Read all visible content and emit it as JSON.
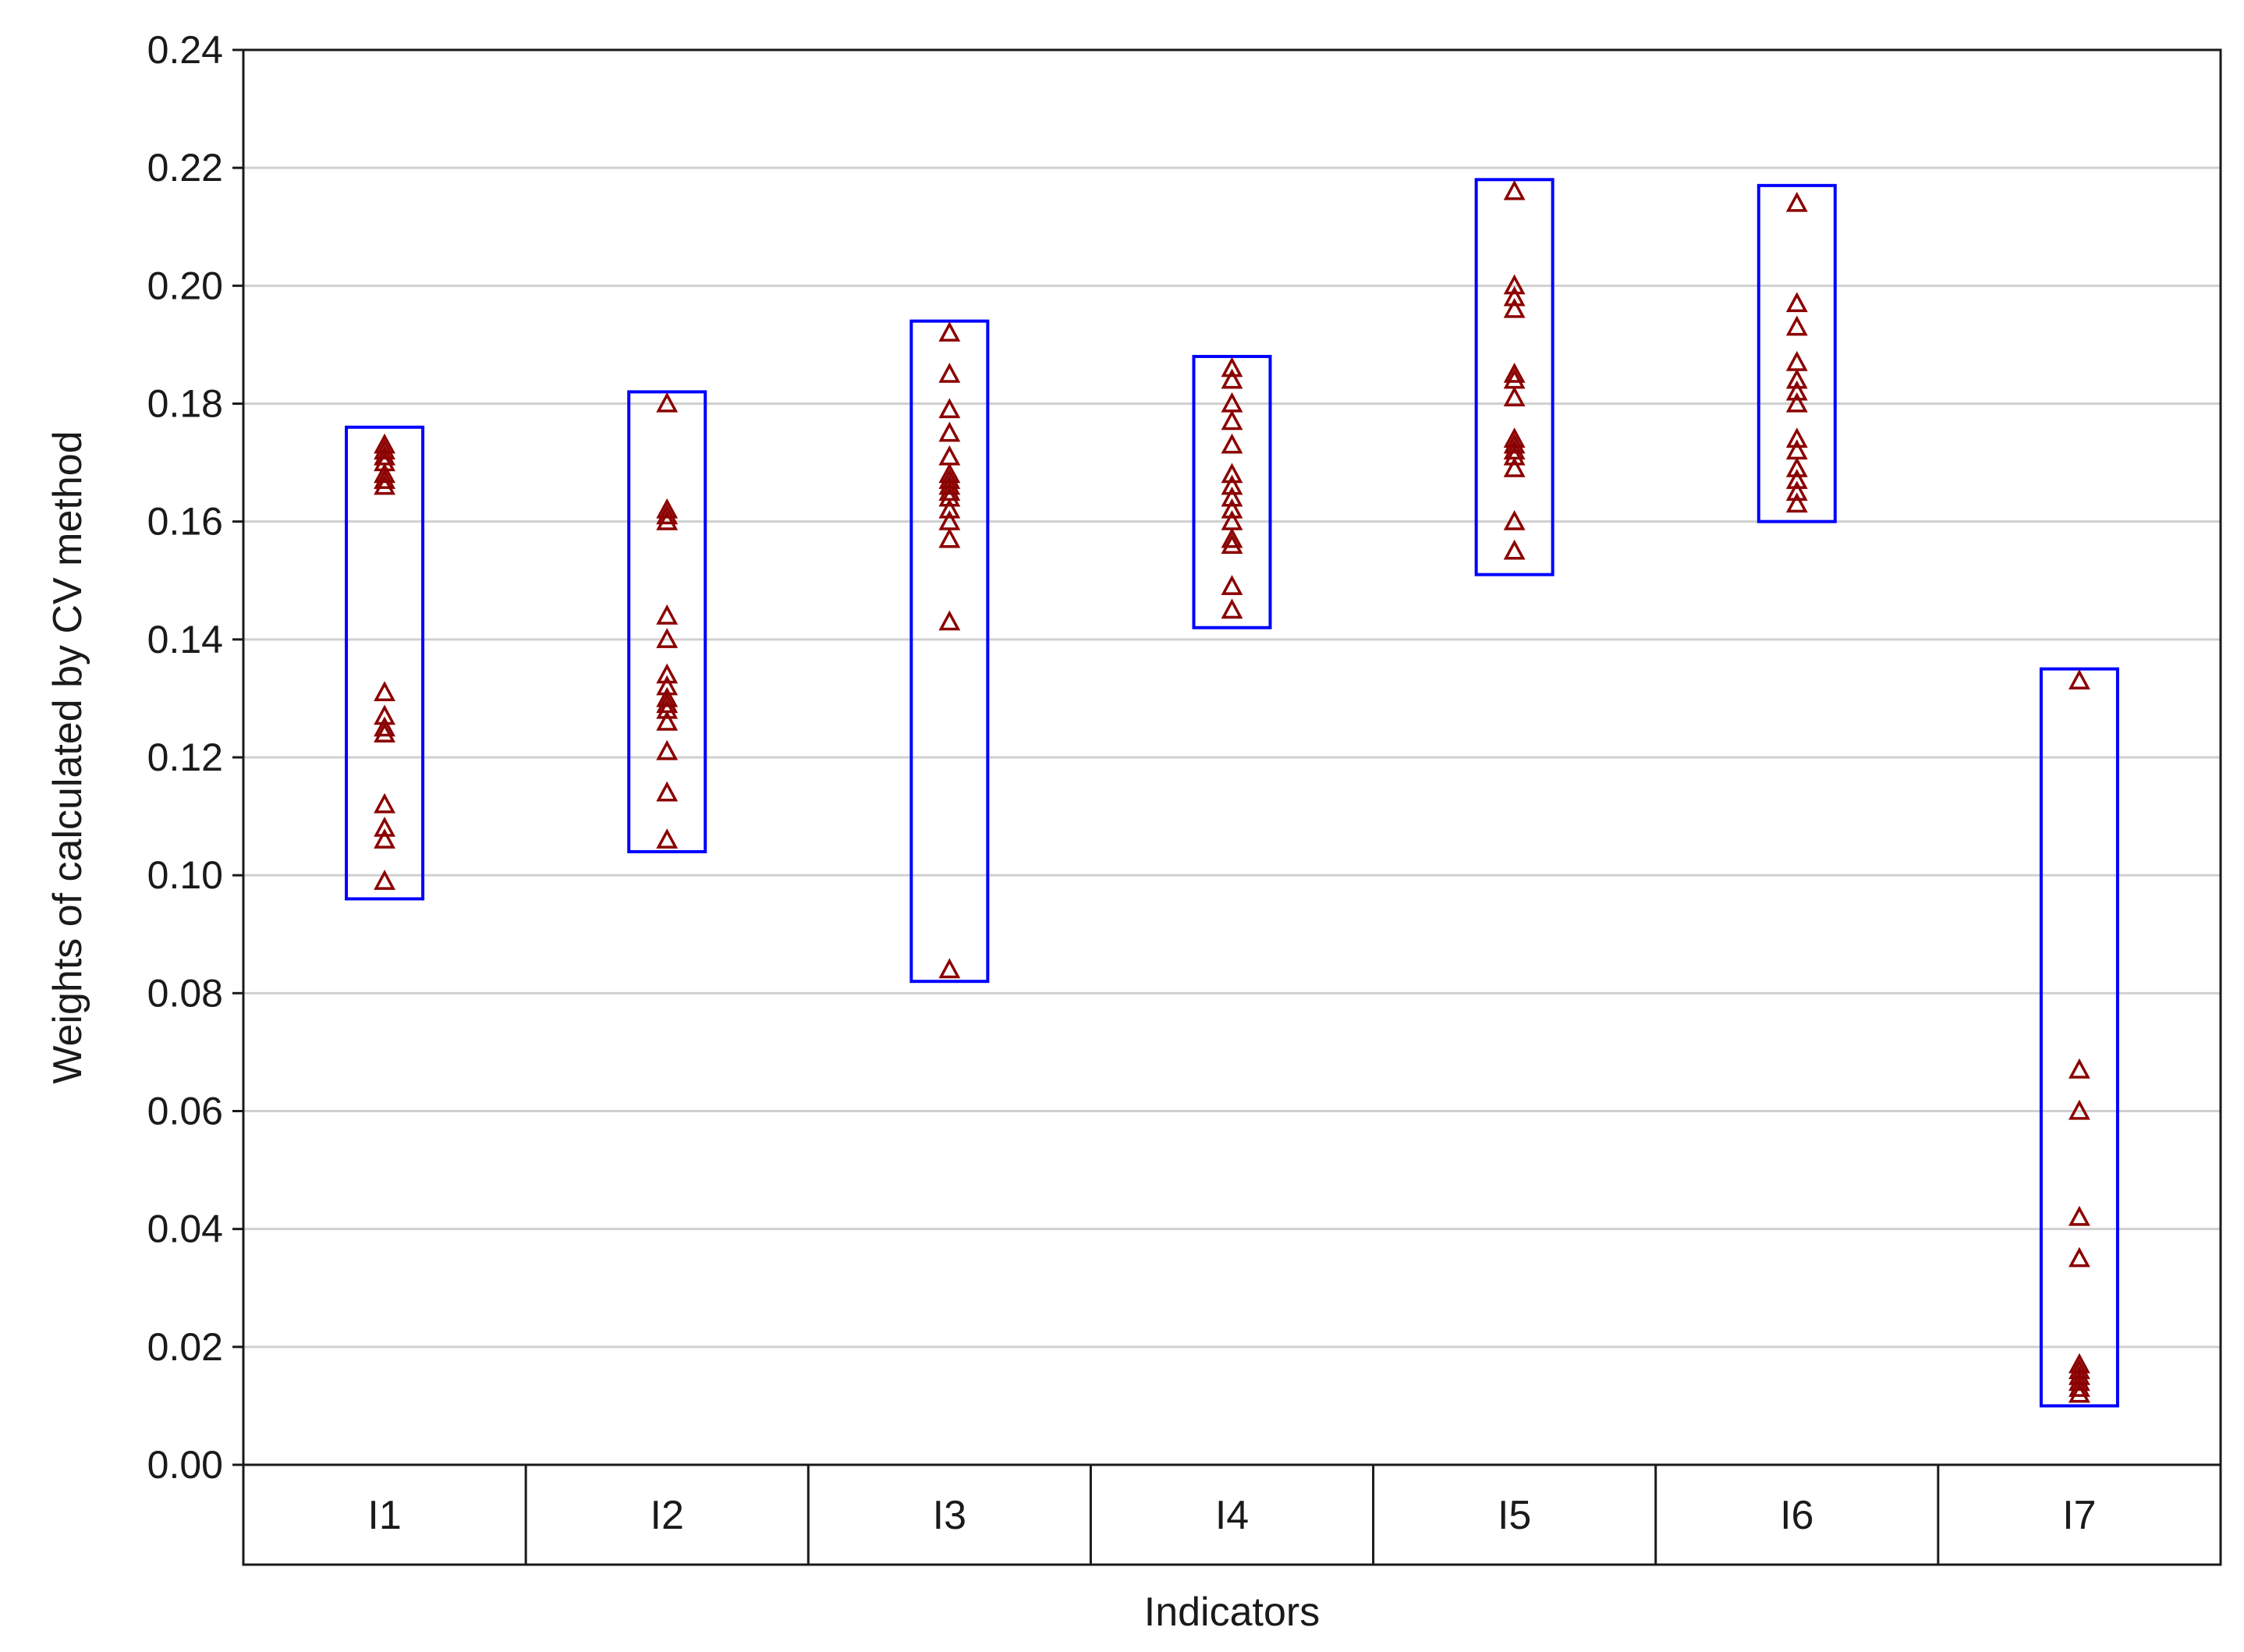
{
  "chart_data": {
    "type": "scatter",
    "title": "",
    "xlabel": "Indicators",
    "ylabel": "Weights of calculated by CV method",
    "ylim": [
      0,
      0.24
    ],
    "yticks": [
      "0.00",
      "0.02",
      "0.04",
      "0.06",
      "0.08",
      "0.10",
      "0.12",
      "0.14",
      "0.16",
      "0.18",
      "0.20",
      "0.22",
      "0.24"
    ],
    "grid": true,
    "categories": [
      "I1",
      "I2",
      "I3",
      "I4",
      "I5",
      "I6",
      "I7"
    ],
    "marker_color": "#8b0000",
    "box_color": "#0000ff",
    "ranges": [
      {
        "min": 0.096,
        "max": 0.176
      },
      {
        "min": 0.104,
        "max": 0.182
      },
      {
        "min": 0.082,
        "max": 0.194
      },
      {
        "min": 0.142,
        "max": 0.188
      },
      {
        "min": 0.151,
        "max": 0.218
      },
      {
        "min": 0.16,
        "max": 0.217
      },
      {
        "min": 0.01,
        "max": 0.135
      }
    ],
    "points": [
      [
        0.173,
        0.172,
        0.171,
        0.17,
        0.168,
        0.167,
        0.166,
        0.131,
        0.127,
        0.125,
        0.124,
        0.112,
        0.108,
        0.106,
        0.099
      ],
      [
        0.18,
        0.162,
        0.161,
        0.16,
        0.144,
        0.14,
        0.134,
        0.132,
        0.13,
        0.129,
        0.128,
        0.126,
        0.121,
        0.114,
        0.106
      ],
      [
        0.192,
        0.185,
        0.179,
        0.175,
        0.171,
        0.168,
        0.167,
        0.166,
        0.165,
        0.164,
        0.162,
        0.16,
        0.157,
        0.143,
        0.084
      ],
      [
        0.186,
        0.184,
        0.18,
        0.177,
        0.173,
        0.168,
        0.166,
        0.164,
        0.162,
        0.16,
        0.157,
        0.156,
        0.149,
        0.145
      ],
      [
        0.216,
        0.2,
        0.198,
        0.196,
        0.185,
        0.184,
        0.181,
        0.174,
        0.173,
        0.172,
        0.171,
        0.169,
        0.16,
        0.155
      ],
      [
        0.214,
        0.197,
        0.193,
        0.187,
        0.184,
        0.182,
        0.18,
        0.174,
        0.172,
        0.169,
        0.167,
        0.165,
        0.163
      ],
      [
        0.133,
        0.067,
        0.06,
        0.042,
        0.035,
        0.017,
        0.016,
        0.015,
        0.014,
        0.013,
        0.012
      ]
    ]
  }
}
